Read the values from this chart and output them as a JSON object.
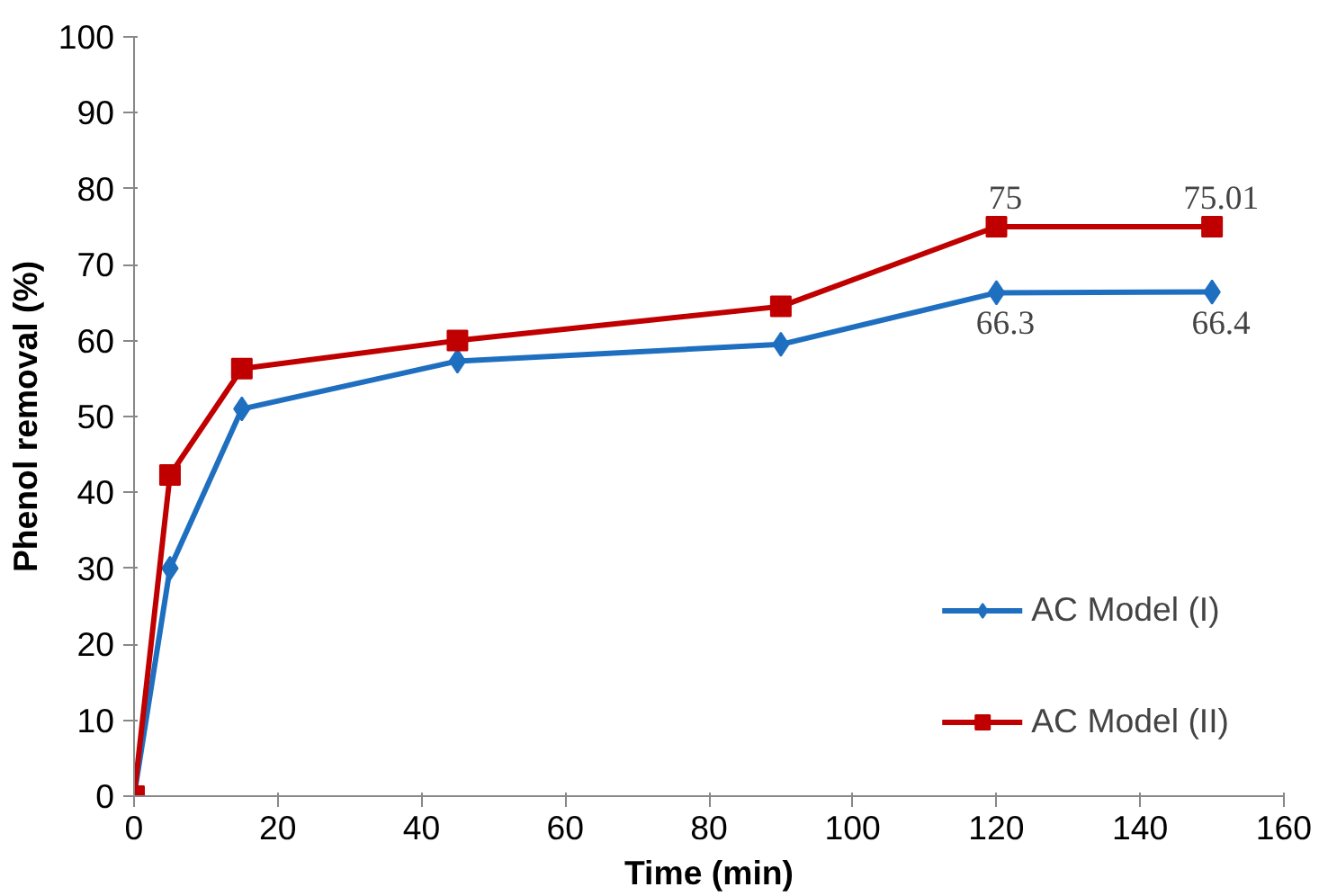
{
  "chart_data": {
    "type": "line",
    "xlabel": "Time (min)",
    "ylabel": "Phenol removal (%)",
    "x": [
      0,
      5,
      15,
      45,
      90,
      120,
      150
    ],
    "series": [
      {
        "name": "AC Model (I)",
        "color": "#1f6fc0",
        "marker": "diamond",
        "values": [
          0,
          30,
          51,
          57.3,
          59.5,
          66.3,
          66.4
        ],
        "value_labels": [
          null,
          null,
          null,
          null,
          null,
          "66.3",
          "66.4"
        ]
      },
      {
        "name": "AC Model (II)",
        "color": "#c00000",
        "marker": "square",
        "values": [
          0,
          42.3,
          56.3,
          60,
          64.5,
          75,
          75.01
        ],
        "value_labels": [
          null,
          null,
          null,
          null,
          null,
          "75",
          "75.01"
        ]
      }
    ],
    "xlim": [
      0,
      160
    ],
    "xticks": [
      0,
      20,
      40,
      60,
      80,
      100,
      120,
      140,
      160
    ],
    "ylim": [
      0,
      100
    ],
    "yticks": [
      0,
      10,
      20,
      30,
      40,
      50,
      60,
      70,
      80,
      90,
      100
    ],
    "grid": false,
    "legend": "bottom right"
  }
}
